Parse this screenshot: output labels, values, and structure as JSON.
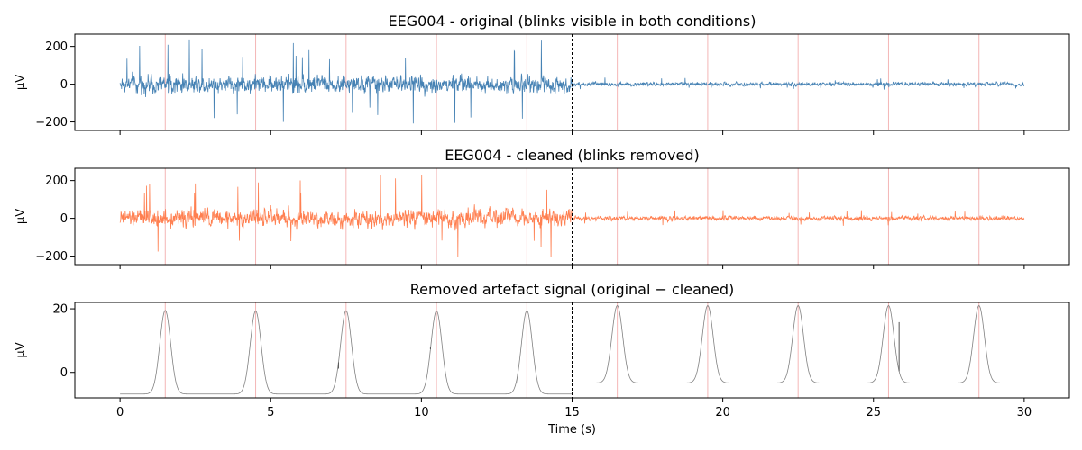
{
  "chart_data": [
    {
      "type": "line",
      "title": "EEG004 - original (blinks visible in both conditions)",
      "xlabel": "",
      "ylabel": "µV",
      "xlim": [
        -1.5,
        31.5
      ],
      "ylim": [
        -245,
        265
      ],
      "yticks": [
        -200,
        0,
        200
      ],
      "xticks": [
        0,
        5,
        10,
        15,
        20,
        25,
        30
      ],
      "show_xtick_labels": false,
      "color": "#4682b4",
      "blink_markers": [
        1.5,
        4.5,
        7.5,
        10.5,
        13.5,
        16.5,
        19.5,
        22.5,
        25.5,
        28.5
      ],
      "divider_x": 15,
      "series": [
        {
          "x_range": [
            0,
            15
          ],
          "noise_amplitude_uV": 45,
          "peak_uV": 240,
          "trough_uV": -215
        },
        {
          "x_range": [
            15,
            30
          ],
          "noise_amplitude_uV": 10,
          "peak_uV": 35,
          "trough_uV": -30
        }
      ]
    },
    {
      "type": "line",
      "title": "EEG004 - cleaned (blinks removed)",
      "xlabel": "",
      "ylabel": "µV",
      "xlim": [
        -1.5,
        31.5
      ],
      "ylim": [
        -245,
        265
      ],
      "yticks": [
        -200,
        0,
        200
      ],
      "xticks": [
        0,
        5,
        10,
        15,
        20,
        25,
        30
      ],
      "show_xtick_labels": false,
      "color": "#ff7f50",
      "blink_markers": [
        1.5,
        4.5,
        7.5,
        10.5,
        13.5,
        16.5,
        19.5,
        22.5,
        25.5,
        28.5
      ],
      "divider_x": 15,
      "series": [
        {
          "x_range": [
            0,
            15
          ],
          "noise_amplitude_uV": 45,
          "peak_uV": 240,
          "trough_uV": -210
        },
        {
          "x_range": [
            15,
            30
          ],
          "noise_amplitude_uV": 12,
          "peak_uV": 45,
          "trough_uV": -45
        }
      ]
    },
    {
      "type": "line",
      "title": "Removed artefact signal (original − cleaned)",
      "xlabel": "Time (s)",
      "ylabel": "µV",
      "xlim": [
        -1.5,
        31.5
      ],
      "ylim": [
        -8,
        22
      ],
      "yticks": [
        0,
        20
      ],
      "xticks": [
        0,
        5,
        10,
        15,
        20,
        25,
        30
      ],
      "show_xtick_labels": true,
      "color": "#808080",
      "blink_markers": [
        1.5,
        4.5,
        7.5,
        10.5,
        13.5,
        16.5,
        19.5,
        22.5,
        25.5,
        28.5
      ],
      "divider_x": 15,
      "series": [
        {
          "x_range": [
            0,
            15
          ],
          "baseline_uV": -6.8,
          "peaks": [
            {
              "x": 1.5,
              "y": 19.5
            },
            {
              "x": 4.5,
              "y": 19.3
            },
            {
              "x": 7.5,
              "y": 19.4
            },
            {
              "x": 10.5,
              "y": 19.3
            },
            {
              "x": 13.5,
              "y": 19.4
            }
          ],
          "spikes": [
            {
              "x": 7.25,
              "y": 1.2
            },
            {
              "x": 10.3,
              "y": 8.0
            },
            {
              "x": 13.2,
              "y": -3.5
            }
          ]
        },
        {
          "x_range": [
            15,
            30
          ],
          "baseline_uV": -3.3,
          "peaks": [
            {
              "x": 16.5,
              "y": 21.0
            },
            {
              "x": 19.5,
              "y": 21.0
            },
            {
              "x": 22.5,
              "y": 21.0
            },
            {
              "x": 25.5,
              "y": 21.0
            },
            {
              "x": 28.5,
              "y": 21.0
            }
          ],
          "spikes": [
            {
              "x": 25.85,
              "y": 15.8
            }
          ]
        }
      ]
    }
  ]
}
